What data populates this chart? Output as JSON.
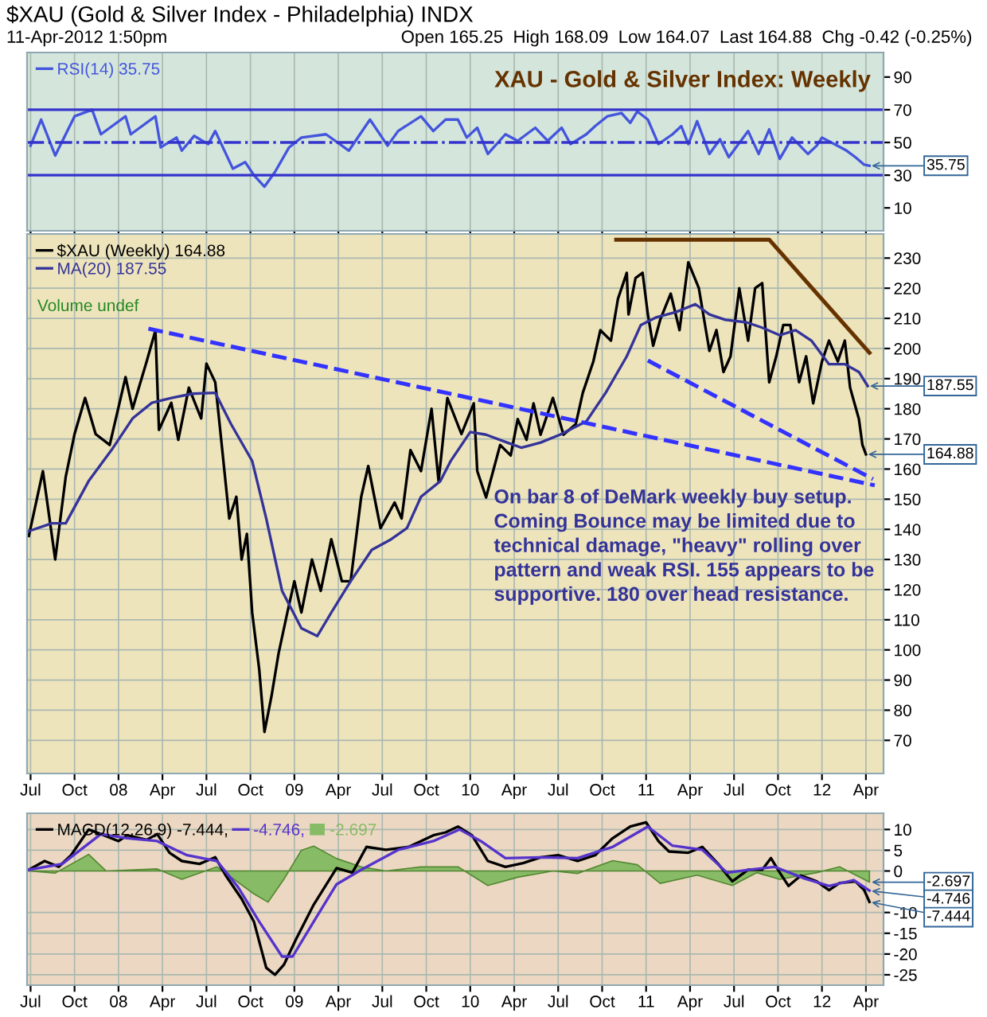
{
  "chart_data": [
    {
      "type": "line",
      "title": "$XAU (Gold & Silver Index - Philadelphia) INDX",
      "subtitle": "11-Apr-2012 1:50pm",
      "annotations": [
        "Open 165.25  High 168.09  Low 164.07  Last 164.88  Chg -0.42 (-0.25%)",
        "XAU - Gold & Silver Index: Weekly",
        {
          "text": "35.75",
          "x": 2012.27,
          "y": 35.75
        }
      ],
      "xlim": [
        2007.48,
        2012.35
      ],
      "xticks": [
        {
          "value": 2007.5,
          "label": null
        },
        {
          "value": 2007.75,
          "label": null
        },
        {
          "value": 2008,
          "label": null
        },
        {
          "value": 2008.25,
          "label": null
        },
        {
          "value": 2008.5,
          "label": null
        },
        {
          "value": 2008.75,
          "label": null
        },
        {
          "value": 2009,
          "label": null
        },
        {
          "value": 2009.25,
          "label": null
        },
        {
          "value": 2009.5,
          "label": null
        },
        {
          "value": 2009.75,
          "label": null
        },
        {
          "value": 2010,
          "label": null
        },
        {
          "value": 2010.25,
          "label": null
        },
        {
          "value": 2010.5,
          "label": null
        },
        {
          "value": 2010.75,
          "label": null
        },
        {
          "value": 2011,
          "label": null
        },
        {
          "value": 2011.25,
          "label": null
        },
        {
          "value": 2011.5,
          "label": null
        },
        {
          "value": 2011.75,
          "label": null
        },
        {
          "value": 2012,
          "label": null
        },
        {
          "value": 2012.25,
          "label": null
        }
      ],
      "ylim": [
        -4,
        105
      ],
      "yticks": [
        10,
        30,
        50,
        70,
        90
      ],
      "tick_labels": "y",
      "grid": "x",
      "legend": "top left",
      "ref_lines": [
        {
          "axis": "y",
          "value": 70,
          "color": "#3333cc"
        },
        {
          "axis": "y",
          "value": 30,
          "color": "#3333cc"
        },
        {
          "axis": "y",
          "value": 50,
          "color": "#3333cc",
          "line_style": "dashed"
        }
      ],
      "series": [
        {
          "name": "RSI(14) 35.75",
          "color": "#4455dd",
          "x": [
            2007.5,
            2007.56,
            2007.64,
            2007.75,
            2007.85,
            2007.9,
            2008.04,
            2008.07,
            2008.21,
            2008.24,
            2008.33,
            2008.36,
            2008.43,
            2008.51,
            2008.55,
            2008.65,
            2008.72,
            2008.77,
            2008.83,
            2008.89,
            2008.97,
            2009.04,
            2009.18,
            2009.31,
            2009.43,
            2009.53,
            2009.59,
            2009.72,
            2009.79,
            2009.86,
            2009.93,
            2009.98,
            2010.04,
            2010.1,
            2010.2,
            2010.27,
            2010.37,
            2010.44,
            2010.52,
            2010.57,
            2010.66,
            2010.71,
            2010.78,
            2010.86,
            2010.91,
            2010.95,
            2011.01,
            2011.07,
            2011.15,
            2011.2,
            2011.24,
            2011.29,
            2011.36,
            2011.42,
            2011.47,
            2011.58,
            2011.64,
            2011.7,
            2011.76,
            2011.83,
            2011.92,
            2011.97,
            2012.0,
            2012.07,
            2012.14,
            2012.19,
            2012.24,
            2012.27
          ],
          "values": [
            48,
            64,
            42,
            66,
            70,
            55,
            66,
            55,
            66,
            47,
            53,
            45,
            54,
            49,
            57,
            34,
            38,
            30,
            23,
            32,
            47,
            53,
            55,
            45,
            64,
            48,
            57,
            66,
            57,
            64,
            64,
            53,
            59,
            43,
            55,
            51,
            59,
            51,
            59,
            49,
            55,
            60,
            66,
            68,
            62,
            69,
            64,
            49,
            55,
            60,
            49,
            63,
            43,
            52,
            41,
            57,
            43,
            58,
            40,
            53,
            43,
            48,
            53,
            49,
            45,
            41,
            36.4,
            35.75
          ]
        }
      ]
    },
    {
      "type": "line",
      "annotations": [
        "On bar 8 of DeMark weekly buy setup.\nComing Bounce may be limited due to\ntechnical damage, \"heavy\" rolling over\npattern and weak RSI. 155 appears to be\nsupportive. 180 over head resistance.",
        "Volume undef",
        {
          "text": "164.88",
          "x": 2012.25,
          "y": 164.88
        },
        {
          "text": "187.55",
          "x": 2012.26,
          "y": 187.55
        }
      ],
      "xlim": [
        2007.48,
        2012.35
      ],
      "xticks": [
        {
          "value": 2007.5,
          "label": "Jul"
        },
        {
          "value": 2007.75,
          "label": "Oct"
        },
        {
          "value": 2008,
          "label": "08"
        },
        {
          "value": 2008.25,
          "label": "Apr"
        },
        {
          "value": 2008.5,
          "label": "Jul"
        },
        {
          "value": 2008.75,
          "label": "Oct"
        },
        {
          "value": 2009,
          "label": "09"
        },
        {
          "value": 2009.25,
          "label": "Apr"
        },
        {
          "value": 2009.5,
          "label": "Jul"
        },
        {
          "value": 2009.75,
          "label": "Oct"
        },
        {
          "value": 2010,
          "label": "10"
        },
        {
          "value": 2010.25,
          "label": "Apr"
        },
        {
          "value": 2010.5,
          "label": "Jul"
        },
        {
          "value": 2010.75,
          "label": "Oct"
        },
        {
          "value": 2011,
          "label": "11"
        },
        {
          "value": 2011.25,
          "label": "Apr"
        },
        {
          "value": 2011.5,
          "label": "Jul"
        },
        {
          "value": 2011.75,
          "label": "Oct"
        },
        {
          "value": 2012,
          "label": "12"
        },
        {
          "value": 2012.25,
          "label": "Apr"
        }
      ],
      "ylim": [
        59,
        238
      ],
      "yticks": [
        70,
        80,
        90,
        100,
        110,
        120,
        130,
        140,
        150,
        160,
        170,
        180,
        190,
        200,
        210,
        220,
        230
      ],
      "grid": true,
      "legend": "top left",
      "series": [
        {
          "name": "$XAU (Weekly) 164.88",
          "color": "#000000",
          "x": [
            2007.49,
            2007.57,
            2007.64,
            2007.7,
            2007.75,
            2007.81,
            2007.87,
            2007.95,
            2008.04,
            2008.08,
            2008.16,
            2008.21,
            2008.23,
            2008.3,
            2008.34,
            2008.4,
            2008.47,
            2008.5,
            2008.55,
            2008.59,
            2008.63,
            2008.67,
            2008.7,
            2008.73,
            2008.76,
            2008.8,
            2008.83,
            2008.87,
            2008.91,
            2008.96,
            2009.0,
            2009.04,
            2009.1,
            2009.15,
            2009.21,
            2009.27,
            2009.32,
            2009.38,
            2009.42,
            2009.49,
            2009.57,
            2009.61,
            2009.66,
            2009.72,
            2009.78,
            2009.82,
            2009.87,
            2009.95,
            2010.02,
            2010.04,
            2010.09,
            2010.17,
            2010.23,
            2010.27,
            2010.32,
            2010.36,
            2010.4,
            2010.47,
            2010.53,
            2010.6,
            2010.64,
            2010.7,
            2010.74,
            2010.8,
            2010.84,
            2010.89,
            2010.9,
            2010.94,
            2010.98,
            2011.01,
            2011.04,
            2011.08,
            2011.14,
            2011.19,
            2011.24,
            2011.3,
            2011.36,
            2011.4,
            2011.44,
            2011.48,
            2011.53,
            2011.58,
            2011.62,
            2011.66,
            2011.7,
            2011.74,
            2011.78,
            2011.82,
            2011.87,
            2011.91,
            2011.95,
            2012.0,
            2012.04,
            2012.09,
            2012.13,
            2012.16,
            2012.21,
            2012.23,
            2012.25
          ],
          "values": [
            137.8,
            159.3,
            130,
            157.5,
            171.6,
            183.6,
            171.6,
            168,
            190.5,
            180,
            195.7,
            206,
            173,
            182,
            169.7,
            187,
            176.8,
            195,
            188.8,
            166.3,
            143.6,
            150.8,
            130,
            138.5,
            112.4,
            93.6,
            72.8,
            84.7,
            98.8,
            112.4,
            122.8,
            112.4,
            130,
            119.6,
            136.7,
            122.8,
            122.8,
            150.8,
            161,
            140.4,
            148.9,
            143.6,
            166.3,
            159.3,
            180,
            156,
            183.6,
            171.6,
            181.8,
            159.3,
            150.6,
            168,
            164.5,
            176.6,
            169.7,
            181.8,
            171.4,
            183.6,
            171.4,
            174.9,
            185.3,
            195.7,
            206.1,
            202.6,
            216.5,
            225.1,
            211.3,
            223.4,
            225.1,
            211.3,
            200.9,
            209.5,
            218.2,
            206.1,
            228.6,
            220,
            199.2,
            206.1,
            192.2,
            197.4,
            220,
            202.6,
            220,
            221.7,
            188.8,
            197.4,
            207.8,
            207.8,
            188.8,
            197.4,
            181.8,
            195.7,
            202.6,
            195.7,
            202.6,
            187,
            176.6,
            168,
            164.88
          ]
        },
        {
          "name": "MA(20) 187.55",
          "color": "#333399",
          "x": [
            2007.49,
            2007.62,
            2007.7,
            2007.83,
            2007.96,
            2008.08,
            2008.19,
            2008.3,
            2008.42,
            2008.55,
            2008.64,
            2008.76,
            2008.84,
            2008.93,
            2009.04,
            2009.13,
            2009.21,
            2009.32,
            2009.44,
            2009.55,
            2009.64,
            2009.72,
            2009.83,
            2009.89,
            2010.0,
            2010.09,
            2010.21,
            2010.29,
            2010.4,
            2010.51,
            2010.66,
            2010.77,
            2010.89,
            2010.97,
            2011.06,
            2011.17,
            2011.28,
            2011.36,
            2011.45,
            2011.57,
            2011.66,
            2011.76,
            2011.85,
            2011.94,
            2012.04,
            2012.13,
            2012.21,
            2012.26
          ],
          "values": [
            139.4,
            142,
            142,
            156,
            166.3,
            176.8,
            182,
            183.6,
            185,
            185.3,
            174.9,
            162.7,
            143.6,
            119.6,
            107.2,
            104.6,
            112.4,
            122.8,
            133.2,
            136.7,
            140.4,
            150.8,
            156,
            162.8,
            172.3,
            171.4,
            168.8,
            167.1,
            168.8,
            171.4,
            175.8,
            185.3,
            197.4,
            207.8,
            210.4,
            212.1,
            214.7,
            211.3,
            209.5,
            208.7,
            206.9,
            204.4,
            206.1,
            202.6,
            194.8,
            194.8,
            192.2,
            187.55
          ]
        },
        {
          "color": "#3333ff",
          "line_style": "dashed",
          "x": [
            2008.17,
            2012.3
          ],
          "values": [
            206.6,
            154.6
          ]
        },
        {
          "color": "#3333ff",
          "line_style": "dashed",
          "x": [
            2011.01,
            2012.29
          ],
          "values": [
            196,
            156.7
          ]
        },
        {
          "color": "#663300",
          "x": [
            2010.83,
            2011.7,
            2012.27
          ],
          "values": [
            236.1,
            236.1,
            198.6
          ]
        }
      ]
    },
    {
      "type": "line",
      "annotations": [
        {
          "text": "-2.697",
          "x": 2012.27,
          "y": -2.697
        },
        {
          "text": "-4.746",
          "x": 2012.27,
          "y": -4.746
        },
        {
          "text": "-7.444",
          "x": 2012.27,
          "y": -7.444
        }
      ],
      "xlim": [
        2007.48,
        2012.35
      ],
      "xticks": [
        {
          "value": 2007.5,
          "label": "Jul"
        },
        {
          "value": 2007.75,
          "label": "Oct"
        },
        {
          "value": 2008,
          "label": "08"
        },
        {
          "value": 2008.25,
          "label": "Apr"
        },
        {
          "value": 2008.5,
          "label": "Jul"
        },
        {
          "value": 2008.75,
          "label": "Oct"
        },
        {
          "value": 2009,
          "label": "09"
        },
        {
          "value": 2009.25,
          "label": "Apr"
        },
        {
          "value": 2009.5,
          "label": "Jul"
        },
        {
          "value": 2009.75,
          "label": "Oct"
        },
        {
          "value": 2010,
          "label": "10"
        },
        {
          "value": 2010.25,
          "label": "Apr"
        },
        {
          "value": 2010.5,
          "label": "Jul"
        },
        {
          "value": 2010.75,
          "label": "Oct"
        },
        {
          "value": 2011,
          "label": "11"
        },
        {
          "value": 2011.25,
          "label": "Apr"
        },
        {
          "value": 2011.5,
          "label": "Jul"
        },
        {
          "value": 2011.75,
          "label": "Oct"
        },
        {
          "value": 2012,
          "label": "12"
        },
        {
          "value": 2012.25,
          "label": "Apr"
        }
      ],
      "ylim": [
        -27.5,
        13.9
      ],
      "yticks": [
        10,
        5,
        0,
        -10,
        -15,
        -20,
        -25
      ],
      "grid": true,
      "legend": "top left",
      "series": [
        {
          "name": "MACD(12,26,9) -7.444,",
          "color": "#000000",
          "x": [
            2007.49,
            2007.58,
            2007.66,
            2007.73,
            2007.83,
            2007.9,
            2008.0,
            2008.05,
            2008.16,
            2008.22,
            2008.29,
            2008.36,
            2008.46,
            2008.55,
            2008.61,
            2008.7,
            2008.77,
            2008.84,
            2008.89,
            2008.94,
            2009.01,
            2009.11,
            2009.24,
            2009.33,
            2009.41,
            2009.52,
            2009.65,
            2009.79,
            2009.86,
            2009.93,
            2010.01,
            2010.1,
            2010.2,
            2010.3,
            2010.4,
            2010.5,
            2010.61,
            2010.71,
            2010.81,
            2010.91,
            2011.0,
            2011.07,
            2011.13,
            2011.24,
            2011.32,
            2011.41,
            2011.49,
            2011.58,
            2011.66,
            2011.71,
            2011.76,
            2011.81,
            2011.88,
            2011.97,
            2012.04,
            2012.1,
            2012.19,
            2012.24,
            2012.27
          ],
          "values": [
            0.3,
            2.4,
            1,
            3.8,
            10,
            8.9,
            7.2,
            8.6,
            7.5,
            8.9,
            4.4,
            2.4,
            1.7,
            3.3,
            -1.1,
            -6.7,
            -12.2,
            -23.3,
            -25,
            -22.6,
            -16.4,
            -8.1,
            0.7,
            -0.4,
            5.8,
            5.1,
            5.8,
            8.6,
            9.3,
            10.7,
            8.6,
            2.4,
            1,
            1.9,
            3.3,
            3.8,
            2.4,
            3.8,
            7.9,
            10.7,
            11.7,
            7.2,
            4.7,
            4.4,
            5.8,
            1.7,
            -2.5,
            0.3,
            0.3,
            3.1,
            -0.4,
            -3.6,
            -1.1,
            -2.5,
            -4.6,
            -2.9,
            -2.5,
            -4.6,
            -7.444
          ]
        },
        {
          "name": "-4.746,",
          "color": "#5533cc",
          "x": [
            2007.49,
            2007.68,
            2007.9,
            2008.05,
            2008.22,
            2008.39,
            2008.56,
            2008.68,
            2008.8,
            2008.93,
            2008.99,
            2009.11,
            2009.24,
            2009.38,
            2009.59,
            2009.79,
            2009.94,
            2010.06,
            2010.2,
            2010.4,
            2010.61,
            2010.81,
            2011.01,
            2011.15,
            2011.32,
            2011.46,
            2011.59,
            2011.73,
            2011.9,
            2012.04,
            2012.18,
            2012.27
          ],
          "values": [
            0.3,
            1.7,
            8.9,
            7.9,
            7.2,
            3.8,
            2.4,
            -3.9,
            -12.2,
            -20.6,
            -20.6,
            -12.2,
            -3.2,
            0.3,
            5.1,
            7.2,
            10,
            7.2,
            3.1,
            3.3,
            3.1,
            5.8,
            10.7,
            6.1,
            5.1,
            -0.4,
            0.3,
            1,
            -1.8,
            -3.6,
            -2.2,
            -4.746
          ]
        },
        {
          "name": "-2.697",
          "type": "area",
          "color": "#88bb66",
          "x": [
            2007.49,
            2007.64,
            2007.83,
            2007.93,
            2008.22,
            2008.36,
            2008.56,
            2008.77,
            2008.85,
            2008.94,
            2009.04,
            2009.11,
            2009.24,
            2009.38,
            2009.52,
            2009.72,
            2009.93,
            2010.1,
            2010.27,
            2010.47,
            2010.61,
            2010.81,
            2010.95,
            2011.08,
            2011.29,
            2011.49,
            2011.63,
            2011.76,
            2011.97,
            2012.1,
            2012.27
          ],
          "values": [
            0,
            -0.5,
            4,
            0,
            0.5,
            -2,
            1,
            -5.5,
            -7.5,
            -2,
            5,
            6,
            3,
            1,
            0,
            1,
            1,
            -3.5,
            -1.5,
            0,
            -0.6,
            2.5,
            1.5,
            -3,
            -1,
            -3.5,
            -0.4,
            -2,
            -0.4,
            1,
            -2.697
          ]
        }
      ]
    }
  ]
}
